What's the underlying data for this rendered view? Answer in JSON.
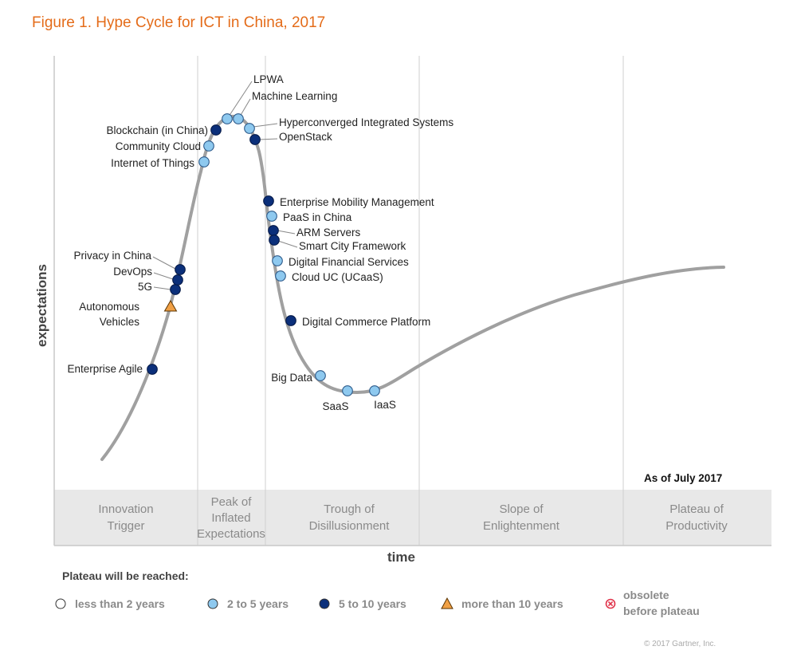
{
  "title": "Figure 1. Hype Cycle for ICT in China, 2017",
  "chart_data": {
    "type": "line",
    "title": "Figure 1. Hype Cycle for ICT in China, 2017",
    "xlabel": "time",
    "ylabel": "expectations",
    "as_of": "As of July 2017",
    "phases": [
      {
        "label": [
          "Innovation",
          "Trigger"
        ]
      },
      {
        "label": [
          "Peak of",
          "Inflated",
          "Expectations"
        ]
      },
      {
        "label": [
          "Trough of",
          "Disillusionment"
        ]
      },
      {
        "label": [
          "Slope of",
          "Enlightenment"
        ]
      },
      {
        "label": [
          "Plateau of",
          "Productivity"
        ]
      }
    ],
    "legend": {
      "title": "Plateau will be reached:",
      "items": [
        {
          "key": "lt2",
          "label": "less than 2 years",
          "color": "#ffffff",
          "shape": "circle"
        },
        {
          "key": "2to5",
          "label": "2 to 5 years",
          "color": "#8ec9ef",
          "shape": "circle"
        },
        {
          "key": "5to10",
          "label": "5 to 10 years",
          "color": "#0b2f7a",
          "shape": "circle"
        },
        {
          "key": "gt10",
          "label": "more than 10 years",
          "color": "#f0a045",
          "shape": "triangle"
        },
        {
          "key": "obsolete",
          "label": [
            "obsolete",
            "before plateau"
          ],
          "color": "#e0334a",
          "shape": "x-circle"
        }
      ]
    },
    "technologies": [
      {
        "name": "Enterprise Agile",
        "category": "5to10",
        "phase": "Innovation Trigger"
      },
      {
        "name": "Autonomous Vehicles",
        "category": "gt10",
        "phase": "Innovation Trigger"
      },
      {
        "name": "5G",
        "category": "5to10",
        "phase": "Innovation Trigger"
      },
      {
        "name": "DevOps",
        "category": "5to10",
        "phase": "Innovation Trigger"
      },
      {
        "name": "Privacy in China",
        "category": "5to10",
        "phase": "Innovation Trigger"
      },
      {
        "name": "Internet of Things",
        "category": "2to5",
        "phase": "Peak of Inflated Expectations"
      },
      {
        "name": "Community Cloud",
        "category": "2to5",
        "phase": "Peak of Inflated Expectations"
      },
      {
        "name": "Blockchain (in China)",
        "category": "5to10",
        "phase": "Peak of Inflated Expectations"
      },
      {
        "name": "LPWA",
        "category": "2to5",
        "phase": "Peak of Inflated Expectations"
      },
      {
        "name": "Machine Learning",
        "category": "2to5",
        "phase": "Peak of Inflated Expectations"
      },
      {
        "name": "Hyperconverged Integrated Systems",
        "category": "2to5",
        "phase": "Peak of Inflated Expectations"
      },
      {
        "name": "OpenStack",
        "category": "5to10",
        "phase": "Peak of Inflated Expectations"
      },
      {
        "name": "Enterprise Mobility Management",
        "category": "5to10",
        "phase": "Trough of Disillusionment"
      },
      {
        "name": "PaaS in China",
        "category": "2to5",
        "phase": "Trough of Disillusionment"
      },
      {
        "name": "ARM Servers",
        "category": "5to10",
        "phase": "Trough of Disillusionment"
      },
      {
        "name": "Smart City Framework",
        "category": "5to10",
        "phase": "Trough of Disillusionment"
      },
      {
        "name": "Digital Financial Services",
        "category": "2to5",
        "phase": "Trough of Disillusionment"
      },
      {
        "name": "Cloud UC (UCaaS)",
        "category": "2to5",
        "phase": "Trough of Disillusionment"
      },
      {
        "name": "Digital Commerce Platform",
        "category": "5to10",
        "phase": "Trough of Disillusionment"
      },
      {
        "name": "Big Data",
        "category": "2to5",
        "phase": "Trough of Disillusionment"
      },
      {
        "name": "SaaS",
        "category": "2to5",
        "phase": "Trough of Disillusionment"
      },
      {
        "name": "IaaS",
        "category": "2to5",
        "phase": "Trough of Disillusionment"
      }
    ]
  },
  "copyright": "© 2017 Gartner, Inc."
}
